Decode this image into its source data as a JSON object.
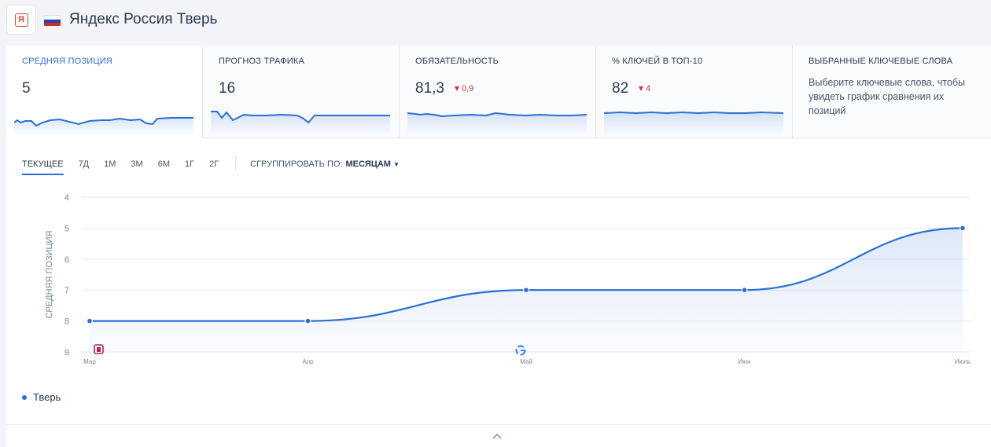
{
  "header": {
    "logo_text": "Я",
    "title": "Яндекс Россия Тверь"
  },
  "metrics": [
    {
      "title": "Средняя позиция",
      "value": "5",
      "delta": "",
      "active": true
    },
    {
      "title": "Прогноз трафика",
      "value": "16",
      "delta": ""
    },
    {
      "title": "Обязательность",
      "value": "81,3",
      "delta": "0,9"
    },
    {
      "title": "% ключей в ТОП-10",
      "value": "82",
      "delta": "4"
    },
    {
      "title": "Выбранные ключевые слова",
      "description": "Выберите ключевые слова, чтобы увидеть график сравнения их позиций"
    }
  ],
  "tabs": [
    "Текущее",
    "7Д",
    "1М",
    "3М",
    "6М",
    "1Г",
    "2Г"
  ],
  "active_tab": "Текущее",
  "group": {
    "label": "Сгруппировать по:",
    "value": "Месяцам"
  },
  "legend": {
    "series_name": "Тверь"
  },
  "colors": {
    "accent": "#2a6fd6",
    "negative": "#d9304a",
    "grid": "#e4e7ec"
  },
  "icons": {
    "collapse": "chevron-up-icon",
    "logo": "yandex-logo-icon",
    "flag": "russia-flag-icon"
  },
  "chart_data": {
    "type": "line",
    "ylabel": "Средняя позиция",
    "y_ticks": [
      4,
      5,
      6,
      7,
      8,
      9
    ],
    "ylim": [
      4,
      9
    ],
    "y_inverted": true,
    "categories": [
      "Мар",
      "Апр",
      "Май",
      "Июн",
      "Июль"
    ],
    "series": [
      {
        "name": "Тверь",
        "values": [
          8,
          8,
          7,
          7,
          5
        ]
      }
    ],
    "markers": [
      {
        "category": "Мар",
        "icon": "yandex-update-icon"
      },
      {
        "category": "Май",
        "icon": "google-icon"
      }
    ],
    "grid": true,
    "area_fill": true
  }
}
